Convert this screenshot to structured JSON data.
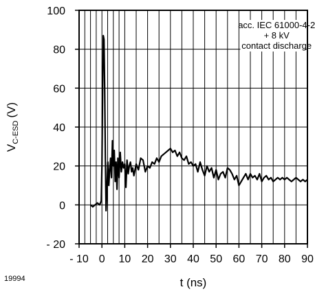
{
  "figure_number": "19994",
  "chart_data": {
    "type": "line",
    "xlabel": "t (ns)",
    "ylabel_main": "V",
    "ylabel_sub": "C-ESD",
    "ylabel_unit": "(V)",
    "xlim": [
      -10,
      90
    ],
    "ylim": [
      -20,
      100
    ],
    "x_ticks": [
      -10,
      0,
      10,
      20,
      30,
      40,
      50,
      60,
      70,
      80,
      90
    ],
    "x_tick_labels": [
      "- 10",
      "0",
      "10",
      "20",
      "30",
      "40",
      "50",
      "60",
      "70",
      "80",
      "90"
    ],
    "y_ticks": [
      -20,
      0,
      20,
      40,
      60,
      80,
      100
    ],
    "y_tick_labels": [
      "- 20",
      "0",
      "20",
      "40",
      "60",
      "80",
      "100"
    ],
    "x_gridlines": [
      -10,
      -7.5,
      -5,
      -2.5,
      0,
      2.5,
      5,
      7.5,
      10,
      15,
      20,
      25,
      30,
      35,
      40,
      45,
      50,
      55,
      60,
      65,
      70,
      75,
      80,
      85,
      90
    ],
    "y_gridlines": [
      -20,
      0,
      20,
      40,
      60,
      80,
      100
    ],
    "grid": true,
    "annotation": [
      "acc. IEC 61000-4-2",
      "+ 8 kV",
      "contact discharge"
    ],
    "series": [
      {
        "color": "#000000",
        "x": [
          -5,
          -4,
          -3,
          -2,
          -1,
          -0.3,
          0,
          0.3,
          0.6,
          0.9,
          1.2,
          1.5,
          1.8,
          2.2,
          2.6,
          3,
          3.4,
          3.8,
          4.2,
          4.6,
          5,
          5.4,
          5.8,
          6.2,
          6.6,
          7,
          7.5,
          8,
          8.5,
          9,
          9.5,
          10,
          10.5,
          11,
          11.5,
          12,
          12.5,
          13,
          13.5,
          14,
          15,
          16,
          17,
          18,
          19,
          20,
          21,
          22,
          23,
          24,
          25,
          26,
          27,
          28,
          29,
          30,
          31,
          32,
          33,
          34,
          35,
          36,
          37,
          38,
          39,
          40,
          41,
          42,
          43,
          44,
          45,
          46,
          47,
          48,
          49,
          50,
          51,
          52,
          53,
          54,
          55,
          56,
          57,
          58,
          59,
          60,
          61,
          62,
          63,
          64,
          65,
          66,
          67,
          68,
          69,
          70,
          71,
          72,
          73,
          74,
          75,
          76,
          77,
          78,
          79,
          80,
          81,
          82,
          83,
          84,
          85,
          86,
          87,
          88,
          89,
          90
        ],
        "values": [
          0,
          -1,
          0,
          1,
          0,
          2,
          20,
          60,
          87,
          85,
          60,
          25,
          -3,
          8,
          22,
          10,
          18,
          24,
          14,
          33,
          20,
          28,
          12,
          22,
          8,
          24,
          14,
          27,
          17,
          22,
          19,
          21,
          9,
          23,
          16,
          20,
          22,
          17,
          19,
          15,
          21,
          18,
          24,
          23,
          17,
          20,
          19,
          22,
          21,
          24,
          22,
          25,
          26,
          27,
          28,
          29,
          27,
          28,
          25,
          27,
          24,
          23,
          25,
          21,
          22,
          20,
          21,
          17,
          22,
          18,
          15,
          20,
          17,
          19,
          14,
          18,
          13,
          16,
          17,
          14,
          19,
          18,
          16,
          13,
          15,
          10,
          12,
          14,
          16,
          13,
          16,
          14,
          15,
          13,
          16,
          12,
          14,
          15,
          13,
          14,
          12,
          13,
          14,
          13,
          14,
          13,
          14,
          13,
          12,
          13,
          14,
          13,
          12,
          13,
          12,
          13
        ]
      }
    ]
  }
}
